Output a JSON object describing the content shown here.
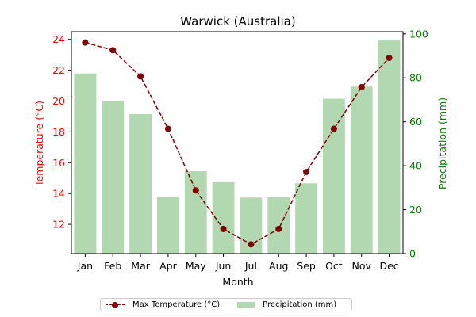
{
  "chart_data": {
    "type": "bar+line",
    "title": "Warwick (Australia)",
    "xlabel": "Month",
    "categories": [
      "Jan",
      "Feb",
      "Mar",
      "Apr",
      "May",
      "Jun",
      "Jul",
      "Aug",
      "Sep",
      "Oct",
      "Nov",
      "Dec"
    ],
    "y_left": {
      "label": "Temperature (°C)",
      "color": "#ff0000",
      "ticks": [
        "12",
        "14",
        "16",
        "18",
        "20",
        "22",
        "24"
      ],
      "ylim": [
        10.1,
        24.5
      ]
    },
    "y_right": {
      "label": "Precipitation (mm)",
      "color": "#008000",
      "ticks": [
        "0",
        "20",
        "40",
        "60",
        "80",
        "100"
      ],
      "ylim": [
        0,
        101
      ]
    },
    "series": [
      {
        "name": "Max Temperature (°C)",
        "kind": "line",
        "axis": "left",
        "color": "#800000",
        "values": [
          23.8,
          23.3,
          21.6,
          18.2,
          14.2,
          11.7,
          10.7,
          11.7,
          15.4,
          18.2,
          20.9,
          22.8
        ]
      },
      {
        "name": "Precipitation (mm)",
        "kind": "bar",
        "axis": "right",
        "color": "#b2d8b2",
        "values": [
          82,
          69.5,
          63.5,
          26,
          37.5,
          32.5,
          25.5,
          26,
          32,
          70.5,
          76,
          97
        ]
      }
    ],
    "grid": false,
    "legend_position": "bottom-center"
  }
}
